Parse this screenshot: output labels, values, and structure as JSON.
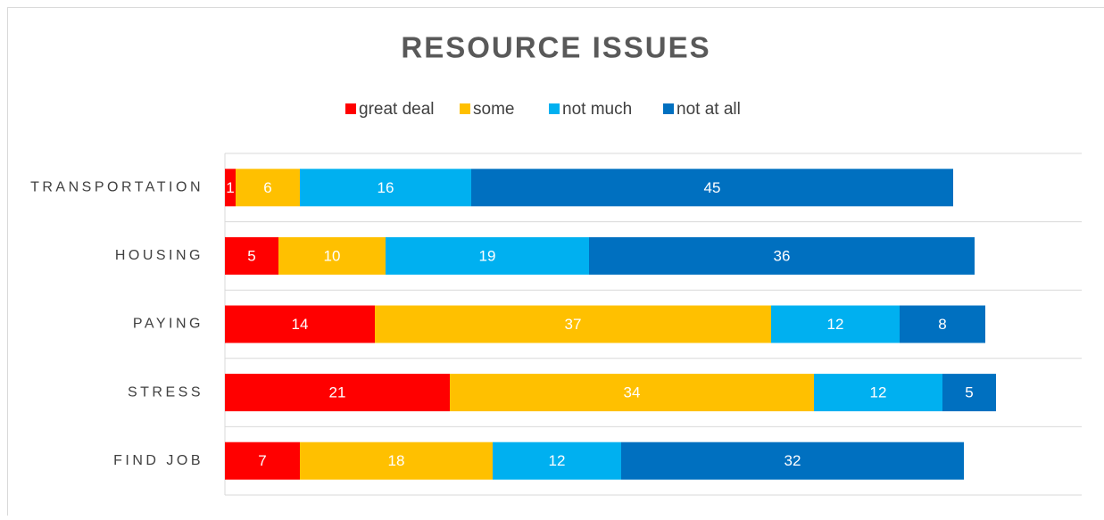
{
  "chart_data": {
    "type": "stacked-bar-horizontal",
    "title": "RESOURCE ISSUES",
    "categories": [
      "TRANSPORTATION",
      "HOUSING",
      "PAYING",
      "STRESS",
      "FIND JOB"
    ],
    "series": [
      {
        "name": "great deal",
        "color": "#ff0000",
        "values": [
          1,
          5,
          14,
          21,
          7
        ]
      },
      {
        "name": "some",
        "color": "#ffc000",
        "values": [
          6,
          10,
          37,
          34,
          18
        ]
      },
      {
        "name": "not much",
        "color": "#00b0f0",
        "values": [
          16,
          19,
          12,
          12,
          12
        ]
      },
      {
        "name": "not at all",
        "color": "#0070c0",
        "values": [
          45,
          36,
          8,
          5,
          32
        ]
      }
    ],
    "xlim": [
      0,
      80
    ],
    "legend": "top"
  }
}
